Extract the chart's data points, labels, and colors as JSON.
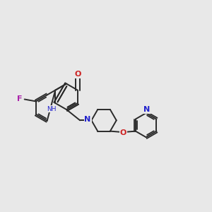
{
  "background_color": "#e8e8e8",
  "bond_color": "#2a2a2a",
  "atom_bg": "#e8e8e8",
  "figsize": [
    3.0,
    3.0
  ],
  "dpi": 100,
  "xlim": [
    0,
    10
  ],
  "ylim": [
    0,
    10
  ]
}
